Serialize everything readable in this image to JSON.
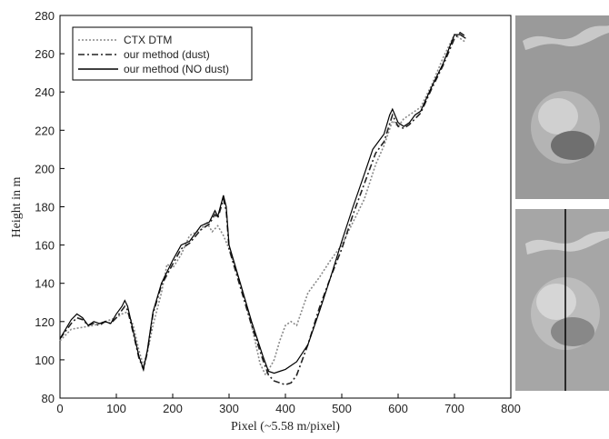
{
  "chart_data": {
    "type": "line",
    "xlabel": "Pixel (~5.58 m/pixel)",
    "ylabel": "Height in m",
    "xlim": [
      0,
      800
    ],
    "xticks": [
      0,
      100,
      200,
      300,
      400,
      500,
      600,
      700,
      800
    ],
    "ylim": [
      80,
      280
    ],
    "yticks": [
      80,
      100,
      120,
      140,
      160,
      180,
      200,
      220,
      240,
      260,
      280
    ],
    "legend": "upper left",
    "series": [
      {
        "name": "CTX  DTM",
        "color": "#888888",
        "style": "dotted",
        "x": [
          0,
          20,
          40,
          60,
          80,
          100,
          110,
          120,
          130,
          140,
          148,
          155,
          165,
          180,
          190,
          200,
          215,
          230,
          250,
          260,
          270,
          280,
          290,
          300,
          320,
          340,
          355,
          365,
          380,
          390,
          400,
          410,
          420,
          440,
          460,
          480,
          500,
          520,
          540,
          560,
          575,
          590,
          600,
          610,
          620,
          640,
          660,
          680,
          700,
          720
        ],
        "values": [
          110,
          116,
          117,
          118,
          120,
          122,
          124,
          125,
          118,
          105,
          97,
          104,
          118,
          135,
          150,
          148,
          155,
          165,
          168,
          172,
          167,
          170,
          165,
          158,
          140,
          118,
          98,
          92,
          100,
          110,
          118,
          120,
          118,
          135,
          143,
          152,
          160,
          172,
          184,
          202,
          212,
          225,
          222,
          226,
          228,
          232,
          244,
          258,
          270,
          266
        ]
      },
      {
        "name": "our method (dust)",
        "color": "#222222",
        "style": "dashdot",
        "x": [
          0,
          10,
          20,
          30,
          40,
          50,
          60,
          70,
          80,
          90,
          100,
          110,
          115,
          120,
          130,
          140,
          148,
          155,
          165,
          180,
          200,
          215,
          230,
          250,
          265,
          275,
          280,
          290,
          295,
          300,
          310,
          320,
          340,
          360,
          370,
          380,
          390,
          400,
          410,
          420,
          440,
          460,
          480,
          500,
          520,
          540,
          560,
          575,
          590,
          600,
          610,
          620,
          640,
          660,
          680,
          700,
          710,
          720
        ],
        "values": [
          111,
          115,
          119,
          122,
          121,
          118,
          119,
          118,
          120,
          119,
          122,
          126,
          128,
          126,
          114,
          101,
          95,
          104,
          124,
          139,
          150,
          158,
          161,
          168,
          171,
          176,
          174,
          184,
          178,
          158,
          148,
          138,
          118,
          100,
          92,
          89,
          88,
          87,
          88,
          92,
          108,
          127,
          143,
          158,
          176,
          192,
          208,
          214,
          228,
          222,
          221,
          223,
          229,
          242,
          254,
          268,
          271,
          269
        ]
      },
      {
        "name": "our method (NO dust)",
        "color": "#000000",
        "style": "solid",
        "x": [
          0,
          10,
          20,
          30,
          40,
          50,
          60,
          70,
          80,
          90,
          100,
          110,
          115,
          120,
          130,
          140,
          148,
          155,
          165,
          180,
          200,
          215,
          230,
          250,
          265,
          275,
          280,
          290,
          295,
          300,
          310,
          320,
          340,
          360,
          370,
          380,
          390,
          400,
          420,
          440,
          460,
          480,
          500,
          520,
          540,
          555,
          565,
          575,
          585,
          590,
          600,
          610,
          620,
          630,
          640,
          660,
          680,
          700,
          710,
          720
        ],
        "values": [
          111,
          116,
          121,
          124,
          122,
          118,
          120,
          119,
          120,
          119,
          124,
          128,
          131,
          128,
          115,
          102,
          95,
          105,
          125,
          140,
          152,
          160,
          162,
          170,
          172,
          178,
          175,
          186,
          180,
          160,
          150,
          140,
          120,
          102,
          94,
          93,
          94,
          95,
          99,
          108,
          125,
          143,
          162,
          180,
          197,
          210,
          214,
          218,
          228,
          231,
          224,
          222,
          224,
          228,
          230,
          243,
          255,
          270,
          270,
          268
        ]
      }
    ]
  }
}
